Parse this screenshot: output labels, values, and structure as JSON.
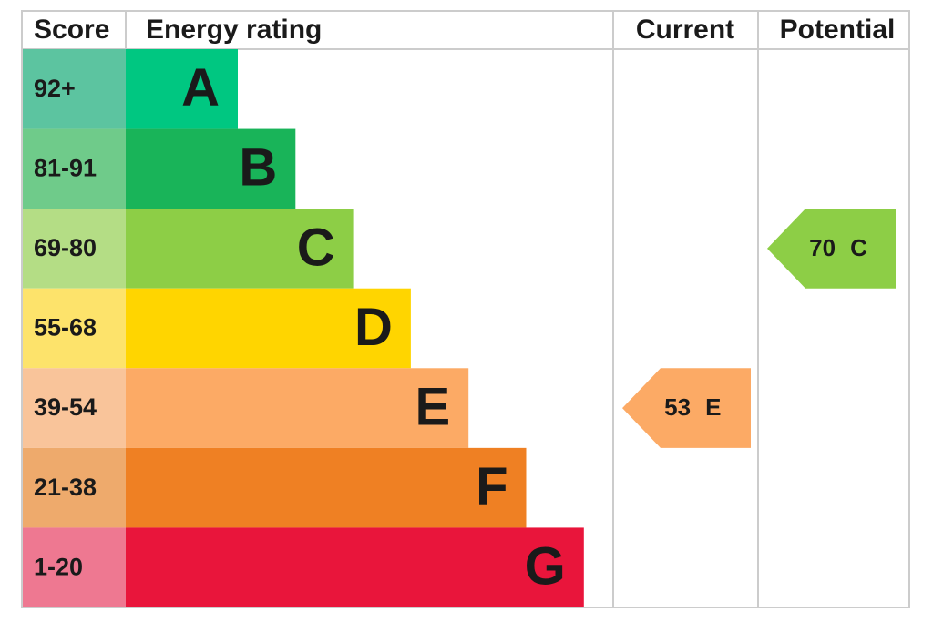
{
  "header": {
    "score": "Score",
    "rating": "Energy rating",
    "current": "Current",
    "potential": "Potential"
  },
  "bands": [
    {
      "score": "92+",
      "letter": "A",
      "color": "#00c781",
      "score_color": "#5cc4a0"
    },
    {
      "score": "81-91",
      "letter": "B",
      "color": "#19b459",
      "score_color": "#6fcb8a"
    },
    {
      "score": "69-80",
      "letter": "C",
      "color": "#8dce46",
      "score_color": "#b4dd85"
    },
    {
      "score": "55-68",
      "letter": "D",
      "color": "#ffd500",
      "score_color": "#fde36b"
    },
    {
      "score": "39-54",
      "letter": "E",
      "color": "#fcaa65",
      "score_color": "#f9c49a"
    },
    {
      "score": "21-38",
      "letter": "F",
      "color": "#ef8023",
      "score_color": "#eeaa6c"
    },
    {
      "score": "1-20",
      "letter": "G",
      "color": "#e9153b",
      "score_color": "#ee7891"
    }
  ],
  "current": {
    "value": 53,
    "letter": "E"
  },
  "potential": {
    "value": 70,
    "letter": "C"
  }
}
